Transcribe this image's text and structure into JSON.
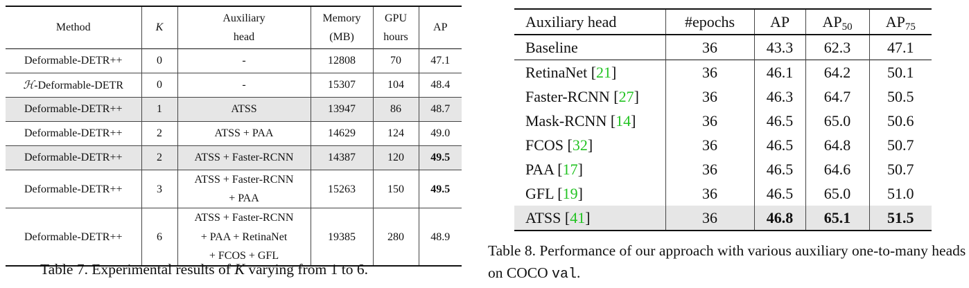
{
  "table7": {
    "headers": {
      "method": "Method",
      "k": "K",
      "aux_line1": "Auxiliary",
      "aux_line2": "head",
      "mem_line1": "Memory",
      "mem_line2": "(MB)",
      "gpu_line1": "GPU",
      "gpu_line2": "hours",
      "ap": "AP"
    },
    "rows": [
      {
        "method": "Deformable-DETR++",
        "k": "0",
        "aux": [
          "-"
        ],
        "memory": "12808",
        "gpu_hours": "70",
        "ap": "47.1"
      },
      {
        "method_prefix": "ℋ",
        "method": "-Deformable-DETR",
        "k": "0",
        "aux": [
          "-"
        ],
        "memory": "15307",
        "gpu_hours": "104",
        "ap": "48.4"
      },
      {
        "method": "Deformable-DETR++",
        "k": "1",
        "aux": [
          "ATSS"
        ],
        "memory": "13947",
        "gpu_hours": "86",
        "ap": "48.7"
      },
      {
        "method": "Deformable-DETR++",
        "k": "2",
        "aux": [
          "ATSS + PAA"
        ],
        "memory": "14629",
        "gpu_hours": "124",
        "ap": "49.0"
      },
      {
        "method": "Deformable-DETR++",
        "k": "2",
        "aux": [
          "ATSS + Faster-RCNN"
        ],
        "memory": "14387",
        "gpu_hours": "120",
        "ap": "49.5"
      },
      {
        "method": "Deformable-DETR++",
        "k": "3",
        "aux": [
          "ATSS + Faster-RCNN",
          "+ PAA"
        ],
        "memory": "15263",
        "gpu_hours": "150",
        "ap": "49.5"
      },
      {
        "method": "Deformable-DETR++",
        "k": "6",
        "aux": [
          "ATSS + Faster-RCNN",
          "+ PAA + RetinaNet",
          "+ FCOS + GFL"
        ],
        "memory": "19385",
        "gpu_hours": "280",
        "ap": "48.9"
      }
    ],
    "caption_prefix": "Table 7. Experimental results of ",
    "caption_var": "K",
    "caption_suffix": " varying from 1 to 6."
  },
  "table8": {
    "headers": {
      "aux": "Auxiliary head",
      "epochs": "#epochs",
      "ap": "AP",
      "ap50_base": "AP",
      "ap50_sub": "50",
      "ap75_base": "AP",
      "ap75_sub": "75"
    },
    "rows": [
      {
        "head": "Baseline",
        "ref": "",
        "epochs": "36",
        "ap": "43.3",
        "ap50": "62.3",
        "ap75": "47.1"
      },
      {
        "head": "RetinaNet",
        "ref": "21",
        "epochs": "36",
        "ap": "46.1",
        "ap50": "64.2",
        "ap75": "50.1"
      },
      {
        "head": "Faster-RCNN",
        "ref": "27",
        "epochs": "36",
        "ap": "46.3",
        "ap50": "64.7",
        "ap75": "50.5"
      },
      {
        "head": "Mask-RCNN",
        "ref": "14",
        "epochs": "36",
        "ap": "46.5",
        "ap50": "65.0",
        "ap75": "50.6"
      },
      {
        "head": "FCOS",
        "ref": "32",
        "epochs": "36",
        "ap": "46.5",
        "ap50": "64.8",
        "ap75": "50.7"
      },
      {
        "head": "PAA",
        "ref": "17",
        "epochs": "36",
        "ap": "46.5",
        "ap50": "64.6",
        "ap75": "50.7"
      },
      {
        "head": "GFL",
        "ref": "19",
        "epochs": "36",
        "ap": "46.5",
        "ap50": "65.0",
        "ap75": "51.0"
      },
      {
        "head": "ATSS",
        "ref": "41",
        "epochs": "36",
        "ap": "46.8",
        "ap50": "65.1",
        "ap75": "51.5"
      }
    ],
    "caption_text": "Table 8. Performance of our approach with various auxiliary one-to-many heads on COCO ",
    "caption_code": "val",
    "caption_end": "."
  },
  "colors": {
    "shade": "#e6e6e6",
    "reference_link": "#22c322"
  }
}
